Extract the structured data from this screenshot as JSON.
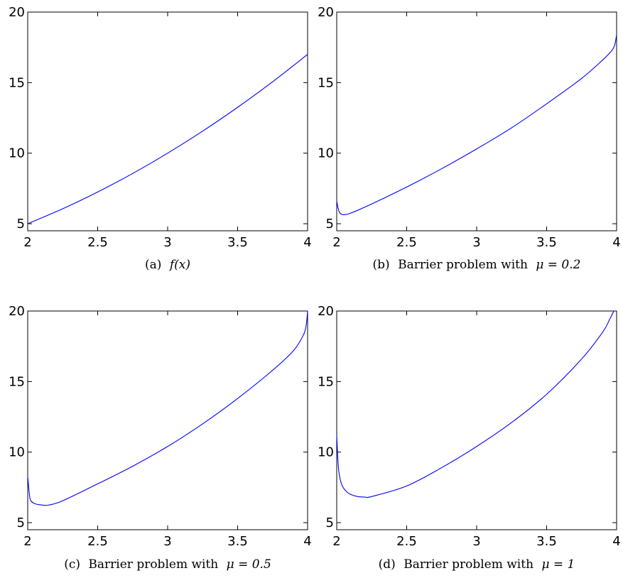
{
  "chart_data": [
    {
      "type": "line",
      "caption_prefix": "(a)",
      "caption_text": "",
      "caption_math": "f(x)",
      "xlim": [
        2,
        4
      ],
      "ylim": [
        4.5,
        20
      ],
      "xticks": [
        "2",
        "2.5",
        "3",
        "3.5",
        "4"
      ],
      "yticks": [
        "5",
        "10",
        "15",
        "20"
      ],
      "series_color": "#0000ff",
      "x": [
        2.0,
        2.25,
        2.5,
        2.75,
        3.0,
        3.25,
        3.5,
        3.75,
        4.0
      ],
      "y": [
        5.0,
        6.06,
        7.25,
        8.56,
        10.0,
        11.56,
        13.25,
        15.06,
        17.0
      ]
    },
    {
      "type": "line",
      "caption_prefix": "(b)",
      "caption_text": "Barrier problem with",
      "caption_math": "μ = 0.2",
      "xlim": [
        2,
        4
      ],
      "ylim": [
        4.5,
        20
      ],
      "xticks": [
        "2",
        "2.5",
        "3",
        "3.5",
        "4"
      ],
      "yticks": [
        "5",
        "10",
        "15",
        "20"
      ],
      "series_color": "#0000ff",
      "x": [
        2.0,
        2.01,
        2.02,
        2.04,
        2.06,
        2.1,
        2.25,
        2.5,
        2.75,
        3.0,
        3.25,
        3.5,
        3.75,
        3.9,
        3.96,
        3.98,
        3.99,
        4.0
      ],
      "y": [
        6.6,
        6.1,
        5.8,
        5.65,
        5.65,
        5.75,
        6.4,
        7.6,
        8.9,
        10.3,
        11.8,
        13.5,
        15.3,
        16.6,
        17.2,
        17.5,
        17.8,
        18.4
      ]
    },
    {
      "type": "line",
      "caption_prefix": "(c)",
      "caption_text": "Barrier problem with",
      "caption_math": "μ = 0.5",
      "xlim": [
        2,
        4
      ],
      "ylim": [
        4.5,
        20
      ],
      "xticks": [
        "2",
        "2.5",
        "3",
        "3.5",
        "4"
      ],
      "yticks": [
        "5",
        "10",
        "15",
        "20"
      ],
      "series_color": "#0000ff",
      "x": [
        2.0,
        2.01,
        2.02,
        2.05,
        2.1,
        2.15,
        2.25,
        2.5,
        2.75,
        3.0,
        3.25,
        3.5,
        3.75,
        3.9,
        3.97,
        3.99,
        4.0
      ],
      "y": [
        8.3,
        7.2,
        6.6,
        6.35,
        6.25,
        6.25,
        6.55,
        7.75,
        9.0,
        10.4,
        12.0,
        13.8,
        15.8,
        17.2,
        18.3,
        19.0,
        20.0
      ]
    },
    {
      "type": "line",
      "caption_prefix": "(d)",
      "caption_text": "Barrier problem with",
      "caption_math": "μ = 1",
      "xlim": [
        2,
        4
      ],
      "ylim": [
        4.5,
        20
      ],
      "xticks": [
        "2",
        "2.5",
        "3",
        "3.5",
        "4"
      ],
      "yticks": [
        "5",
        "10",
        "15",
        "20"
      ],
      "series_color": "#0000ff",
      "x": [
        2.0,
        2.01,
        2.02,
        2.04,
        2.07,
        2.1,
        2.15,
        2.2,
        2.25,
        2.5,
        2.75,
        3.0,
        3.25,
        3.5,
        3.75,
        3.9,
        3.95,
        3.98
      ],
      "y": [
        11.2,
        9.2,
        8.3,
        7.6,
        7.2,
        7.0,
        6.85,
        6.82,
        6.85,
        7.6,
        8.9,
        10.4,
        12.1,
        14.1,
        16.6,
        18.5,
        19.4,
        20.0
      ]
    }
  ]
}
